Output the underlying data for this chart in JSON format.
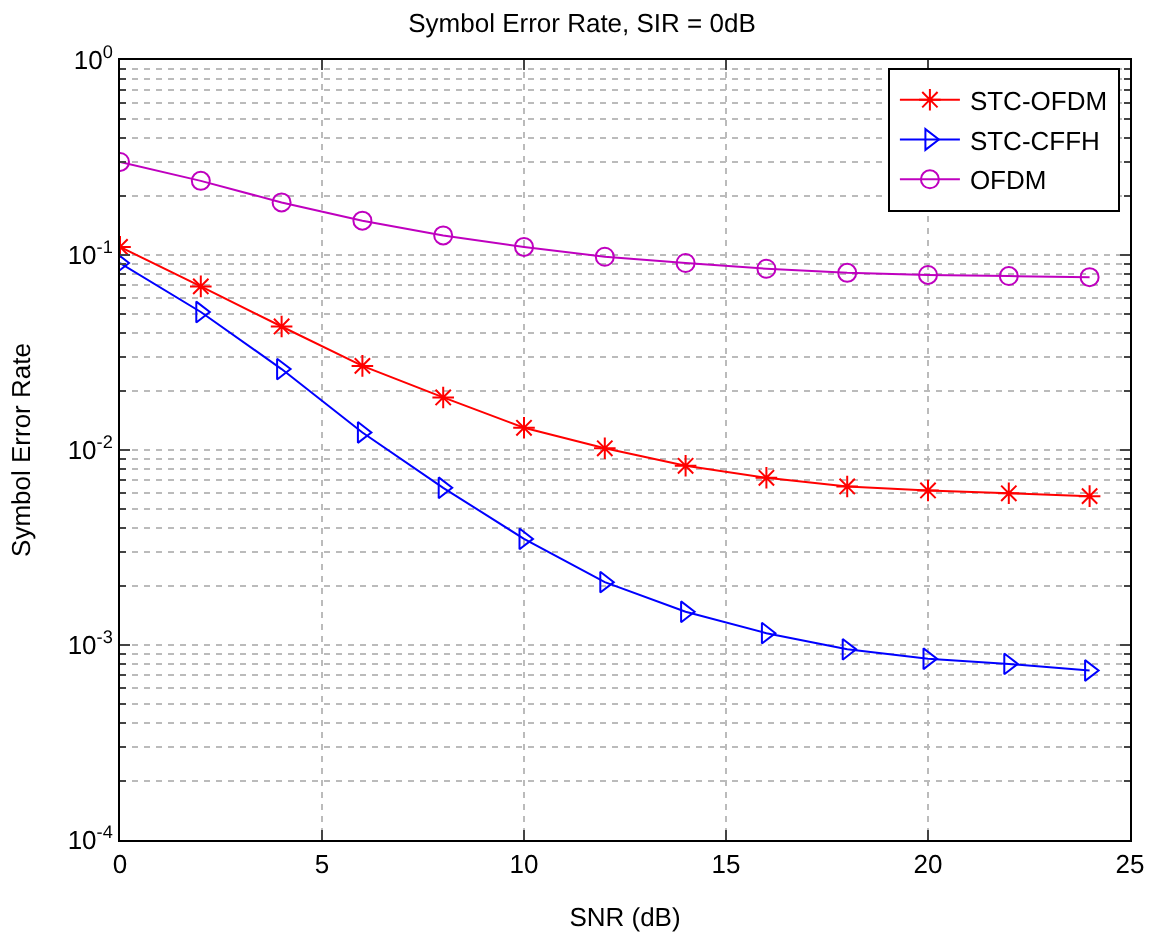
{
  "chart_data": {
    "type": "line",
    "title": "Symbol Error Rate, SIR = 0dB",
    "xlabel": "SNR (dB)",
    "ylabel": "Symbol Error Rate",
    "x": [
      0,
      2,
      4,
      6,
      8,
      10,
      12,
      14,
      16,
      18,
      20,
      22,
      24
    ],
    "series": [
      {
        "name": "STC-OFDM",
        "color": "#ff0000",
        "marker": "cross",
        "values": [
          0.11,
          0.069,
          0.043,
          0.027,
          0.0186,
          0.013,
          0.0102,
          0.0083,
          0.0072,
          0.0065,
          0.0062,
          0.006,
          0.0058
        ]
      },
      {
        "name": "STC-CFFH",
        "color": "#0000ff",
        "marker": "triangle",
        "values": [
          0.091,
          0.051,
          0.026,
          0.0123,
          0.0064,
          0.0035,
          0.0021,
          0.00148,
          0.00115,
          0.00095,
          0.00085,
          0.0008,
          0.00074
        ]
      },
      {
        "name": "OFDM",
        "color": "#bf00bf",
        "marker": "circle",
        "values": [
          0.3,
          0.24,
          0.186,
          0.15,
          0.126,
          0.11,
          0.098,
          0.091,
          0.085,
          0.081,
          0.079,
          0.078,
          0.077
        ]
      }
    ],
    "log": "y",
    "xlim": [
      0,
      25
    ],
    "xticks": [
      0,
      5,
      10,
      15,
      20,
      25
    ],
    "ylim": [
      0.0001,
      1
    ],
    "yticks": [
      {
        "value": 0.0001,
        "label": "10$^{-4}$"
      },
      {
        "value": 0.001,
        "label": "10$^{-3}$"
      },
      {
        "value": 0.01,
        "label": "10$^{-2}$"
      },
      {
        "value": 0.1,
        "label": "10$^{-1}$"
      },
      {
        "value": 1,
        "label": "10$^{0}$"
      }
    ],
    "grid": true,
    "legend": "top right",
    "line_style": "solid"
  }
}
